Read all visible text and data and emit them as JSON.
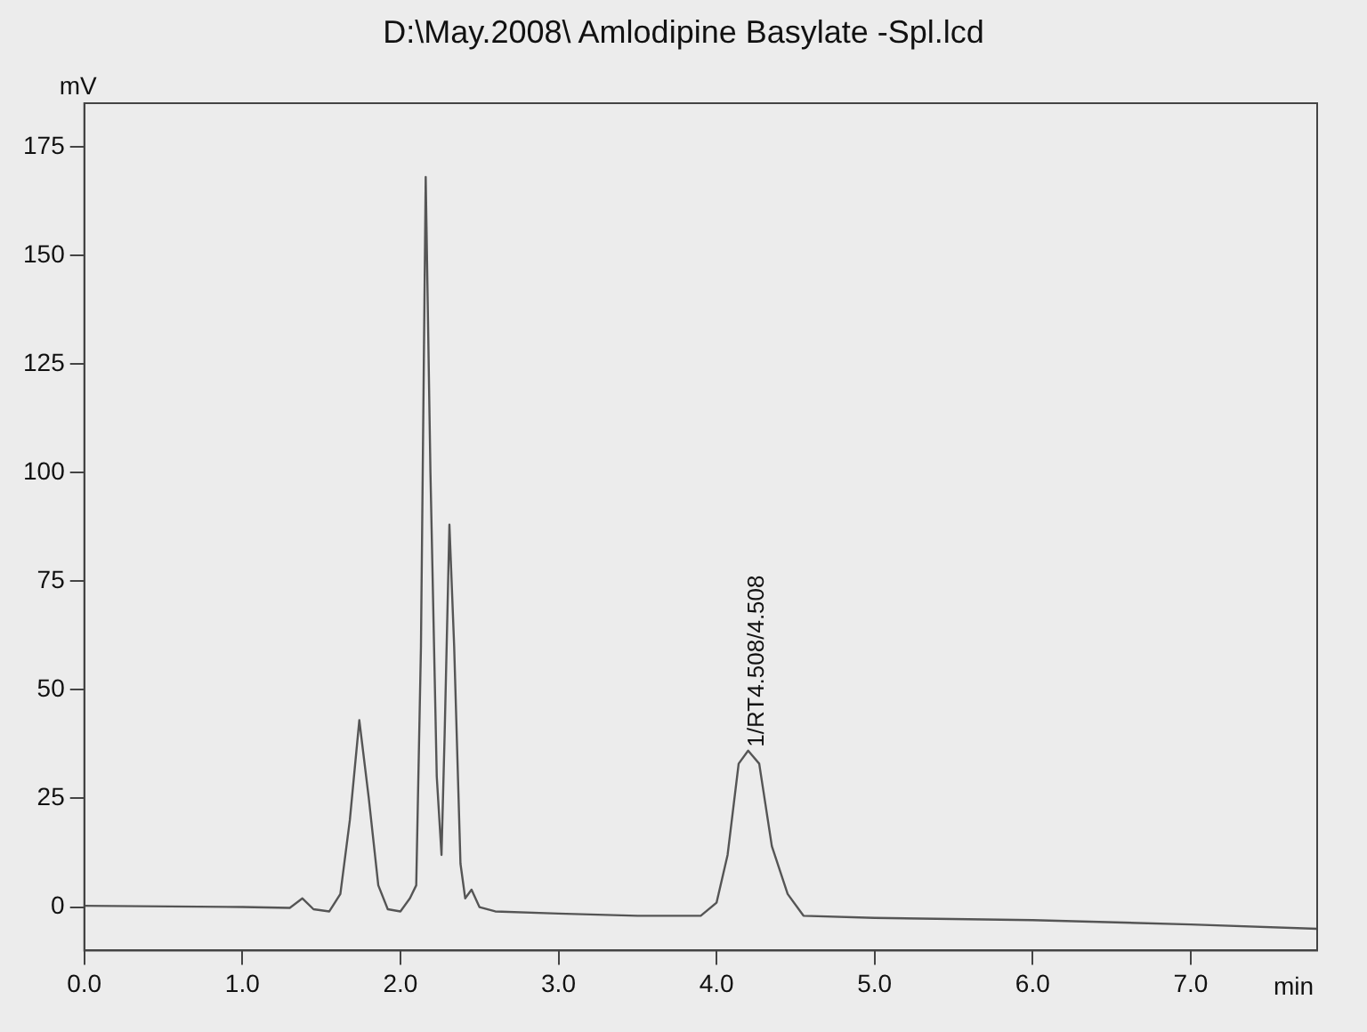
{
  "chart_data": {
    "type": "line",
    "title": "D:\\May.2008\\ Amlodipine Basylate -Spl.lcd",
    "xlabel": "min",
    "ylabel": "mV",
    "x": [
      0,
      1.0,
      1.3,
      1.38,
      1.45,
      1.55,
      1.62,
      1.68,
      1.74,
      1.8,
      1.86,
      1.92,
      2.0,
      2.06,
      2.1,
      2.13,
      2.16,
      2.19,
      2.23,
      2.26,
      2.28,
      2.31,
      2.34,
      2.38,
      2.41,
      2.45,
      2.5,
      2.6,
      3.0,
      3.5,
      3.9,
      4.0,
      4.07,
      4.14,
      4.2,
      4.27,
      4.35,
      4.45,
      4.55,
      5.0,
      6.0,
      7.0,
      7.8
    ],
    "series": [
      {
        "color": "#555555",
        "values": [
          0.3,
          0,
          -0.2,
          2,
          -0.5,
          -1,
          3,
          20,
          43,
          25,
          5,
          -0.5,
          -1,
          2,
          5,
          60,
          168,
          100,
          30,
          12,
          40,
          88,
          60,
          10,
          2,
          4,
          0,
          -1,
          -1.5,
          -2,
          -2,
          1,
          12,
          33,
          36,
          33,
          14,
          3,
          -2,
          -2.5,
          -3,
          -4,
          -5
        ]
      }
    ],
    "annotations": [
      {
        "text": "1/RT4.508/4.508",
        "x": 4.2,
        "y": 36
      }
    ],
    "xlim": [
      0,
      7.8
    ],
    "ylim": [
      -10,
      185
    ],
    "xticks": [
      {
        "value": 0,
        "label": "0.0"
      },
      {
        "value": 1,
        "label": "1.0"
      },
      {
        "value": 2,
        "label": "2.0"
      },
      {
        "value": 3,
        "label": "3.0"
      },
      {
        "value": 4,
        "label": "4.0"
      },
      {
        "value": 5,
        "label": "5.0"
      },
      {
        "value": 6,
        "label": "6.0"
      },
      {
        "value": 7,
        "label": "7.0"
      }
    ],
    "yticks": [
      0,
      25,
      50,
      75,
      100,
      125,
      150,
      175
    ],
    "grid": false,
    "legend": false,
    "marker": "none",
    "line_style": "solid"
  }
}
